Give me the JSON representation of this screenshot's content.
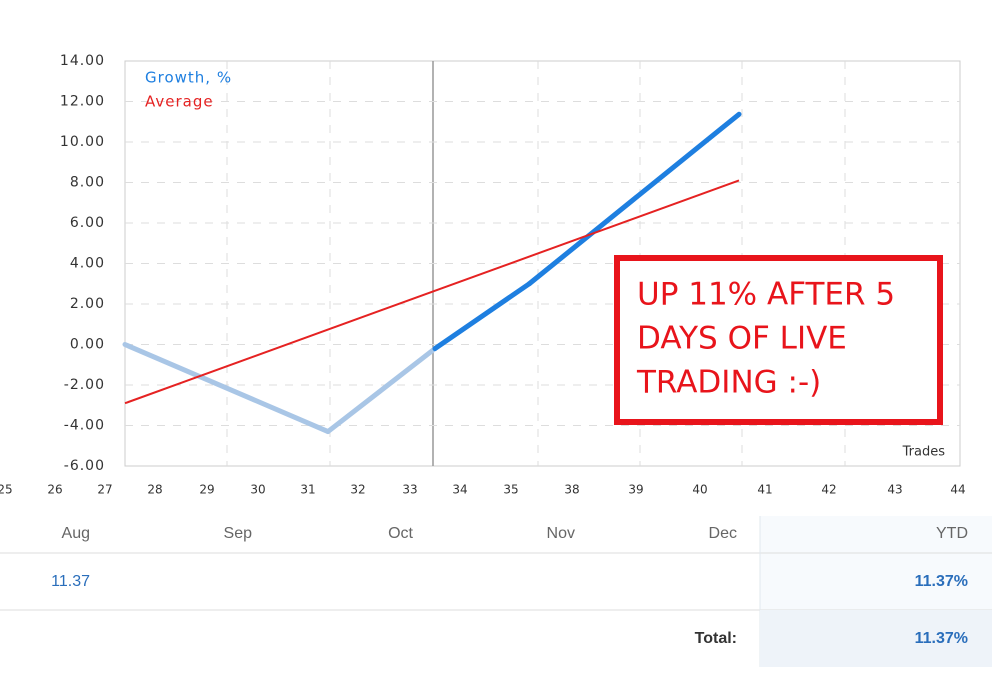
{
  "chart_data": {
    "type": "line",
    "ylim": [
      -6,
      14
    ],
    "yticks": [
      {
        "value": -6,
        "label": "-6.00"
      },
      {
        "value": -4,
        "label": "-4.00"
      },
      {
        "value": -2,
        "label": "-2.00"
      },
      {
        "value": 0,
        "label": "0.00"
      },
      {
        "value": 2,
        "label": "2.00"
      },
      {
        "value": 4,
        "label": "4.00"
      },
      {
        "value": 6,
        "label": "6.00"
      },
      {
        "value": 8,
        "label": "8.00"
      },
      {
        "value": 10,
        "label": "10.00"
      },
      {
        "value": 12,
        "label": "12.00"
      },
      {
        "value": 14,
        "label": "14.00"
      }
    ],
    "xticks": [
      25,
      26,
      27,
      28,
      29,
      30,
      31,
      32,
      33,
      34,
      35,
      38,
      39,
      40,
      41,
      42,
      43,
      44
    ],
    "xlabel": "Trades",
    "grid": true,
    "series": [
      {
        "name": "Growth, %",
        "color": "#1e7fe0",
        "segment_colors": [
          "#a9c6e6",
          "#a9c6e6",
          "#1e7fe0",
          "#1e7fe0"
        ],
        "x": [
          27.4,
          31.4,
          33.5,
          35.9,
          40.6
        ],
        "values": [
          0,
          -4.3,
          -0.2,
          3.0,
          11.37
        ]
      },
      {
        "name": "Average",
        "color": "#e52222",
        "x": [
          27.4,
          40.6
        ],
        "values": [
          -2.9,
          8.1
        ]
      }
    ],
    "annotation": {
      "lines": [
        "UP 11% AFTER 5",
        "DAYS OF LIVE",
        "TRADING :-)"
      ],
      "color": "#e8141b"
    }
  },
  "table": {
    "columns": [
      "Aug",
      "Sep",
      "Oct",
      "Nov",
      "Dec",
      "YTD"
    ],
    "row": {
      "aug": "11.37",
      "ytd": "11.37%"
    },
    "total": {
      "label": "Total:",
      "value": "11.37%"
    }
  }
}
